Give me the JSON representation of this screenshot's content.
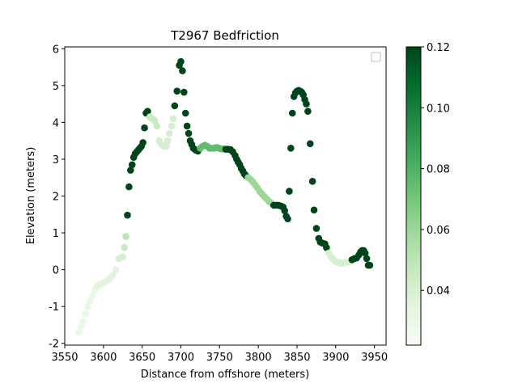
{
  "chart_data": {
    "type": "scatter",
    "title": "T2967 Bedfriction",
    "xlabel": "Distance from offshore (meters)",
    "ylabel": "Elevation (meters)",
    "xlim": [
      3550,
      3965
    ],
    "ylim": [
      -2.05,
      6.05
    ],
    "xticks": [
      3550,
      3600,
      3650,
      3700,
      3750,
      3800,
      3850,
      3900,
      3950
    ],
    "yticks": [
      -2,
      -1,
      0,
      1,
      2,
      3,
      4,
      5,
      6
    ],
    "grid": false,
    "legend": {
      "placement": "top-right",
      "entries": []
    },
    "colormap": "Greens",
    "colorbar": {
      "min": 0.022,
      "max": 0.12,
      "ticks": [
        0.04,
        0.06,
        0.08,
        0.1,
        0.12
      ],
      "tick_labels": [
        "0.04",
        "0.06",
        "0.08",
        "0.10",
        "0.12"
      ]
    },
    "colors": {
      "low": "#f7fcf5",
      "high": "#00441b"
    },
    "points": [
      [
        3568,
        -1.7,
        0.03
      ],
      [
        3571,
        -1.55,
        0.03
      ],
      [
        3574,
        -1.4,
        0.03
      ],
      [
        3577,
        -1.2,
        0.03
      ],
      [
        3580,
        -1.0,
        0.03
      ],
      [
        3583,
        -0.85,
        0.03
      ],
      [
        3586,
        -0.7,
        0.03
      ],
      [
        3589,
        -0.55,
        0.03
      ],
      [
        3592,
        -0.45,
        0.035
      ],
      [
        3596,
        -0.4,
        0.035
      ],
      [
        3600,
        -0.35,
        0.035
      ],
      [
        3604,
        -0.3,
        0.035
      ],
      [
        3608,
        -0.25,
        0.035
      ],
      [
        3612,
        -0.15,
        0.035
      ],
      [
        3616,
        0.0,
        0.035
      ],
      [
        3620,
        0.3,
        0.04
      ],
      [
        3625,
        0.35,
        0.04
      ],
      [
        3627,
        0.6,
        0.045
      ],
      [
        3629,
        0.9,
        0.05
      ],
      [
        3631,
        1.48,
        0.12
      ],
      [
        3633,
        2.25,
        0.12
      ],
      [
        3635,
        2.7,
        0.12
      ],
      [
        3637,
        2.85,
        0.12
      ],
      [
        3639,
        3.05,
        0.12
      ],
      [
        3641,
        3.15,
        0.12
      ],
      [
        3643,
        3.2,
        0.12
      ],
      [
        3645,
        3.25,
        0.12
      ],
      [
        3647,
        3.3,
        0.12
      ],
      [
        3649,
        3.35,
        0.12
      ],
      [
        3651,
        3.45,
        0.12
      ],
      [
        3653,
        3.85,
        0.12
      ],
      [
        3655,
        4.25,
        0.12
      ],
      [
        3657,
        4.3,
        0.12
      ],
      [
        3660,
        4.15,
        0.045
      ],
      [
        3663,
        4.1,
        0.045
      ],
      [
        3666,
        4.05,
        0.045
      ],
      [
        3669,
        3.9,
        0.045
      ],
      [
        3672,
        3.5,
        0.04
      ],
      [
        3675,
        3.4,
        0.04
      ],
      [
        3678,
        3.35,
        0.04
      ],
      [
        3681,
        3.35,
        0.04
      ],
      [
        3683,
        3.5,
        0.04
      ],
      [
        3685,
        3.7,
        0.04
      ],
      [
        3688,
        3.9,
        0.04
      ],
      [
        3690,
        4.1,
        0.04
      ],
      [
        3692,
        4.45,
        0.12
      ],
      [
        3695,
        4.85,
        0.12
      ],
      [
        3698,
        5.55,
        0.12
      ],
      [
        3700,
        5.65,
        0.12
      ],
      [
        3702,
        5.4,
        0.12
      ],
      [
        3704,
        4.82,
        0.12
      ],
      [
        3706,
        4.25,
        0.12
      ],
      [
        3708,
        3.9,
        0.12
      ],
      [
        3710,
        3.7,
        0.12
      ],
      [
        3712,
        3.5,
        0.12
      ],
      [
        3714,
        3.4,
        0.12
      ],
      [
        3716,
        3.3,
        0.12
      ],
      [
        3719,
        3.25,
        0.12
      ],
      [
        3722,
        3.22,
        0.12
      ],
      [
        3725,
        3.3,
        0.075
      ],
      [
        3728,
        3.35,
        0.075
      ],
      [
        3731,
        3.38,
        0.075
      ],
      [
        3734,
        3.35,
        0.075
      ],
      [
        3737,
        3.3,
        0.075
      ],
      [
        3740,
        3.3,
        0.075
      ],
      [
        3743,
        3.3,
        0.075
      ],
      [
        3746,
        3.32,
        0.075
      ],
      [
        3749,
        3.3,
        0.075
      ],
      [
        3752,
        3.28,
        0.075
      ],
      [
        3755,
        3.28,
        0.075
      ],
      [
        3758,
        3.27,
        0.12
      ],
      [
        3761,
        3.27,
        0.12
      ],
      [
        3764,
        3.26,
        0.12
      ],
      [
        3767,
        3.2,
        0.12
      ],
      [
        3770,
        3.1,
        0.12
      ],
      [
        3772,
        3.0,
        0.12
      ],
      [
        3774,
        2.92,
        0.12
      ],
      [
        3776,
        2.85,
        0.12
      ],
      [
        3778,
        2.75,
        0.12
      ],
      [
        3780,
        2.68,
        0.12
      ],
      [
        3782,
        2.6,
        0.12
      ],
      [
        3784,
        2.55,
        0.12
      ],
      [
        3787,
        2.5,
        0.06
      ],
      [
        3790,
        2.45,
        0.06
      ],
      [
        3793,
        2.38,
        0.06
      ],
      [
        3796,
        2.3,
        0.06
      ],
      [
        3799,
        2.22,
        0.06
      ],
      [
        3802,
        2.12,
        0.06
      ],
      [
        3805,
        2.05,
        0.06
      ],
      [
        3808,
        1.98,
        0.06
      ],
      [
        3811,
        1.92,
        0.06
      ],
      [
        3814,
        1.85,
        0.06
      ],
      [
        3817,
        1.8,
        0.06
      ],
      [
        3820,
        1.75,
        0.12
      ],
      [
        3823,
        1.75,
        0.12
      ],
      [
        3826,
        1.75,
        0.12
      ],
      [
        3829,
        1.73,
        0.12
      ],
      [
        3832,
        1.7,
        0.12
      ],
      [
        3834,
        1.6,
        0.12
      ],
      [
        3836,
        1.45,
        0.12
      ],
      [
        3838,
        1.38,
        0.12
      ],
      [
        3840,
        2.13,
        0.12
      ],
      [
        3842,
        3.3,
        0.12
      ],
      [
        3844,
        4.25,
        0.12
      ],
      [
        3846,
        4.7,
        0.12
      ],
      [
        3848,
        4.8,
        0.12
      ],
      [
        3850,
        4.85,
        0.12
      ],
      [
        3852,
        4.87,
        0.12
      ],
      [
        3854,
        4.85,
        0.12
      ],
      [
        3856,
        4.82,
        0.12
      ],
      [
        3858,
        4.75,
        0.12
      ],
      [
        3860,
        4.62,
        0.12
      ],
      [
        3862,
        4.5,
        0.12
      ],
      [
        3864,
        4.3,
        0.12
      ],
      [
        3867,
        3.42,
        0.12
      ],
      [
        3870,
        2.4,
        0.12
      ],
      [
        3872,
        1.62,
        0.12
      ],
      [
        3875,
        1.12,
        0.12
      ],
      [
        3878,
        0.85,
        0.12
      ],
      [
        3880,
        0.75,
        0.12
      ],
      [
        3883,
        0.72,
        0.12
      ],
      [
        3886,
        0.7,
        0.12
      ],
      [
        3888,
        0.6,
        0.12
      ],
      [
        3891,
        0.45,
        0.04
      ],
      [
        3894,
        0.35,
        0.04
      ],
      [
        3897,
        0.28,
        0.04
      ],
      [
        3900,
        0.22,
        0.04
      ],
      [
        3903,
        0.2,
        0.04
      ],
      [
        3906,
        0.18,
        0.04
      ],
      [
        3909,
        0.18,
        0.04
      ],
      [
        3912,
        0.2,
        0.04
      ],
      [
        3915,
        0.2,
        0.04
      ],
      [
        3918,
        0.22,
        0.04
      ],
      [
        3921,
        0.27,
        0.12
      ],
      [
        3924,
        0.3,
        0.12
      ],
      [
        3927,
        0.32,
        0.12
      ],
      [
        3930,
        0.4,
        0.12
      ],
      [
        3932,
        0.48,
        0.12
      ],
      [
        3934,
        0.52,
        0.12
      ],
      [
        3936,
        0.52,
        0.12
      ],
      [
        3938,
        0.45,
        0.12
      ],
      [
        3940,
        0.3,
        0.12
      ],
      [
        3942,
        0.12,
        0.12
      ],
      [
        3944,
        0.12,
        0.12
      ]
    ]
  }
}
